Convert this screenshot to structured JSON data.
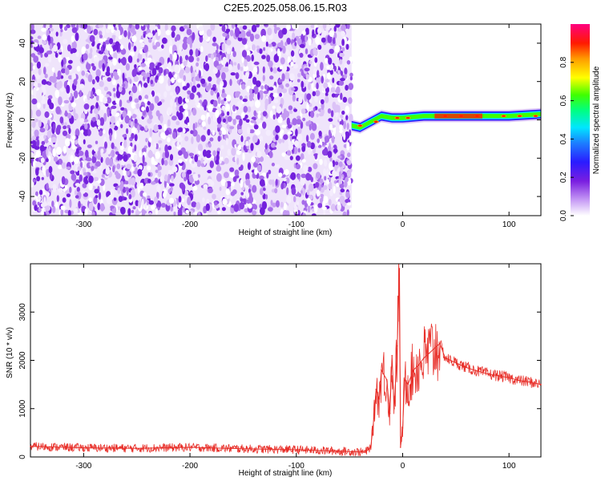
{
  "figure": {
    "title": "C2E5.2025.058.06.15.R03"
  },
  "chart_data": [
    {
      "type": "heatmap",
      "title": "C2E5.2025.058.06.15.R03",
      "xlabel": "Height of straight line (km)",
      "ylabel": "Frequency (Hz)",
      "xlim": [
        -350,
        130
      ],
      "ylim": [
        -50,
        50
      ],
      "xticks": [
        -300,
        -200,
        -100,
        0,
        100
      ],
      "yticks": [
        -40,
        -20,
        0,
        20,
        40
      ],
      "noise_region_x": [
        -350,
        -48
      ],
      "signal_band": [
        {
          "x": -48,
          "y": -3
        },
        {
          "x": -40,
          "y": -4
        },
        {
          "x": -30,
          "y": -1
        },
        {
          "x": -20,
          "y": 2
        },
        {
          "x": -10,
          "y": 1
        },
        {
          "x": 0,
          "y": 1
        },
        {
          "x": 20,
          "y": 2
        },
        {
          "x": 50,
          "y": 2
        },
        {
          "x": 80,
          "y": 2
        },
        {
          "x": 100,
          "y": 2
        },
        {
          "x": 130,
          "y": 3
        }
      ],
      "colorbar": {
        "label": "Normalized spectral amplitude",
        "ticks": [
          0.0,
          0.2,
          0.4,
          0.6,
          0.8
        ],
        "range": [
          0,
          1
        ]
      }
    },
    {
      "type": "line",
      "xlabel": "Height of straight line (km)",
      "ylabel": "SNR (10 * v/v)",
      "xlim": [
        -350,
        130
      ],
      "ylim": [
        0,
        4000
      ],
      "xticks": [
        -300,
        -200,
        -100,
        0,
        100
      ],
      "yticks": [
        0,
        1000,
        2000,
        3000
      ],
      "color": "#e8302a",
      "x": [
        -350,
        -300,
        -250,
        -200,
        -150,
        -100,
        -60,
        -35,
        -30,
        -27,
        -25,
        -22,
        -20,
        -15,
        -12,
        -10,
        -8,
        -5,
        -3,
        -2,
        0,
        2,
        5,
        10,
        15,
        20,
        25,
        30,
        35,
        40,
        50,
        60,
        70,
        80,
        90,
        100,
        110,
        120,
        130
      ],
      "y": [
        220,
        190,
        180,
        200,
        170,
        150,
        120,
        100,
        200,
        800,
        1400,
        1200,
        1800,
        1600,
        900,
        2100,
        1000,
        2300,
        3900,
        200,
        600,
        1600,
        1500,
        1800,
        1900,
        2050,
        2150,
        2250,
        2350,
        2050,
        1950,
        1850,
        1780,
        1720,
        1680,
        1640,
        1580,
        1550,
        1500
      ]
    }
  ]
}
